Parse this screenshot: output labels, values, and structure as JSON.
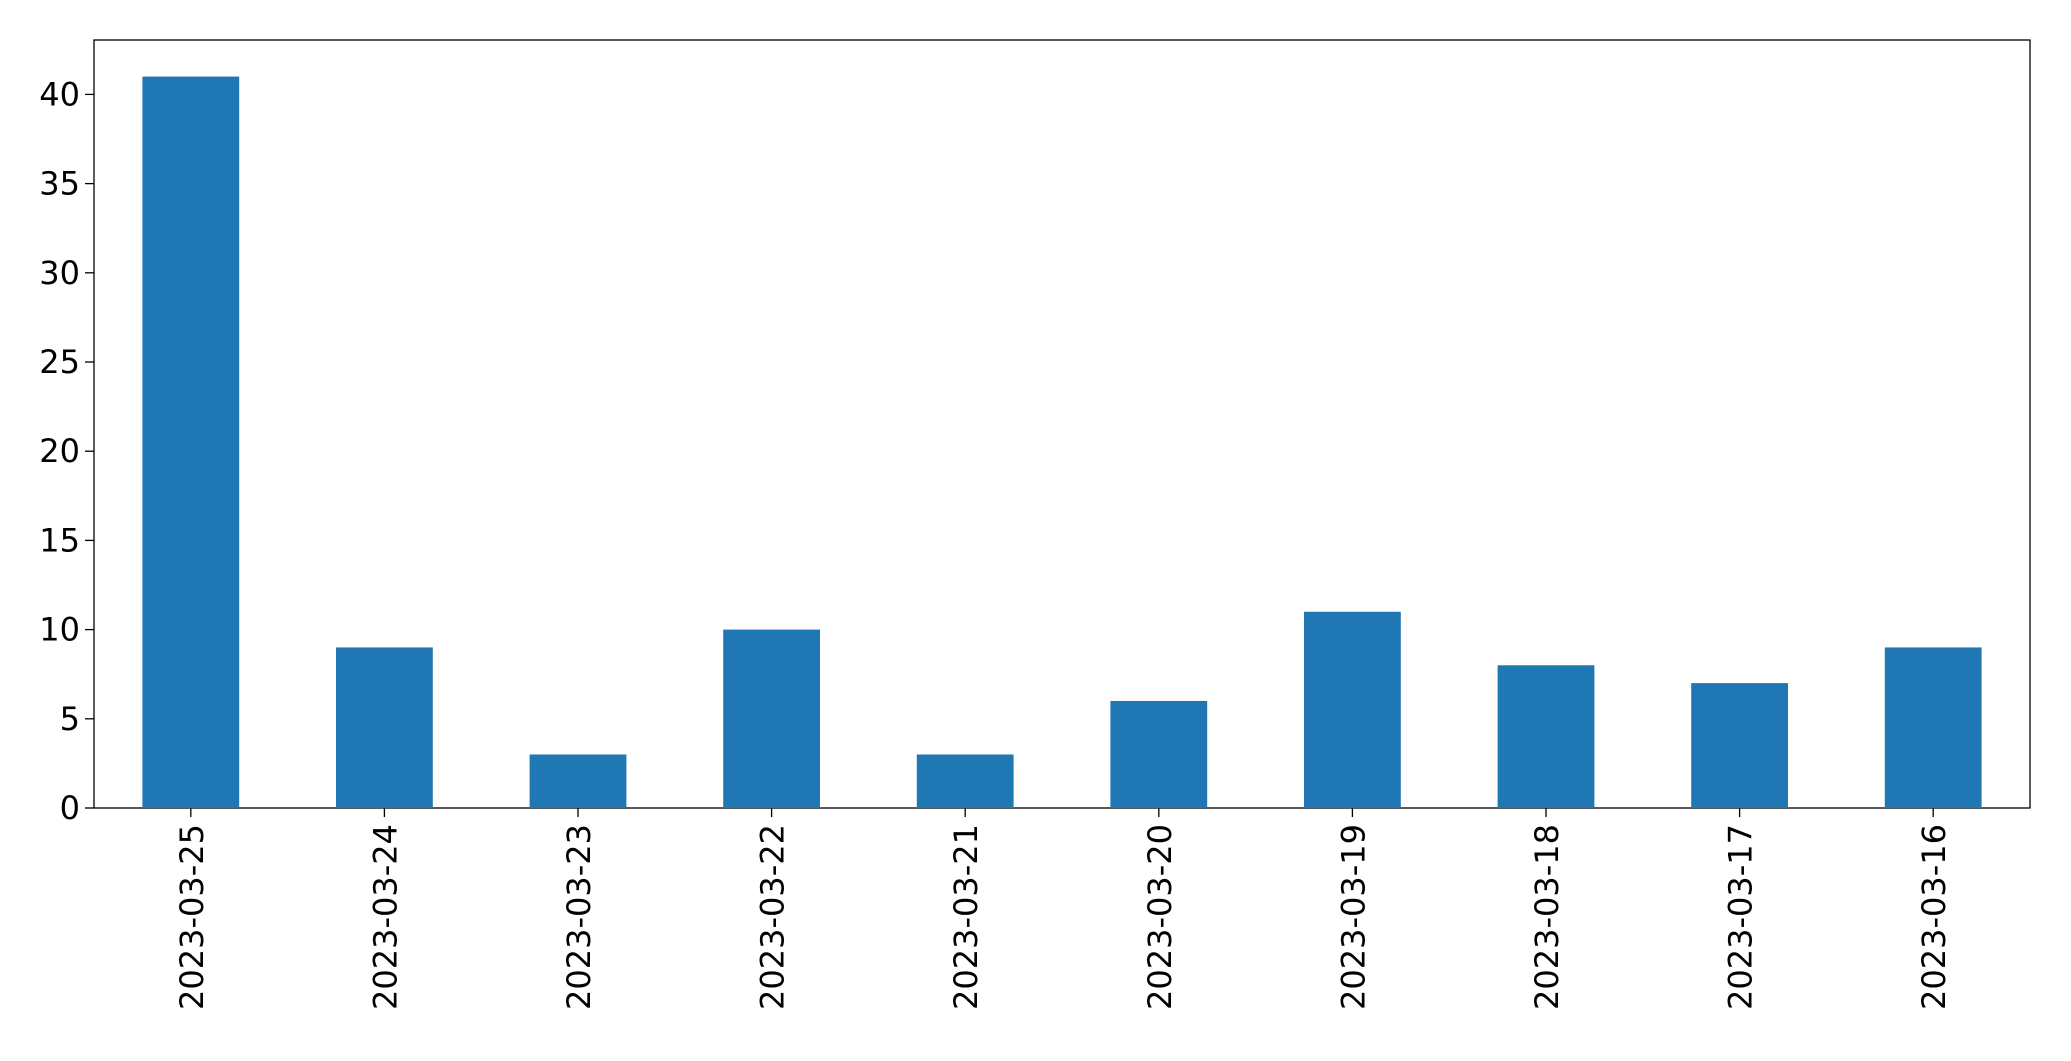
{
  "chart_data": {
    "type": "bar",
    "categories": [
      "2023-03-25",
      "2023-03-24",
      "2023-03-23",
      "2023-03-22",
      "2023-03-21",
      "2023-03-20",
      "2023-03-19",
      "2023-03-18",
      "2023-03-17",
      "2023-03-16"
    ],
    "values": [
      41,
      9,
      3,
      10,
      3,
      6,
      11,
      8,
      7,
      9
    ],
    "color": "#1f77b4",
    "ylim": [
      0,
      43.05
    ],
    "yticks": [
      0,
      5,
      10,
      15,
      20,
      25,
      30,
      35,
      40
    ],
    "grid": false
  }
}
